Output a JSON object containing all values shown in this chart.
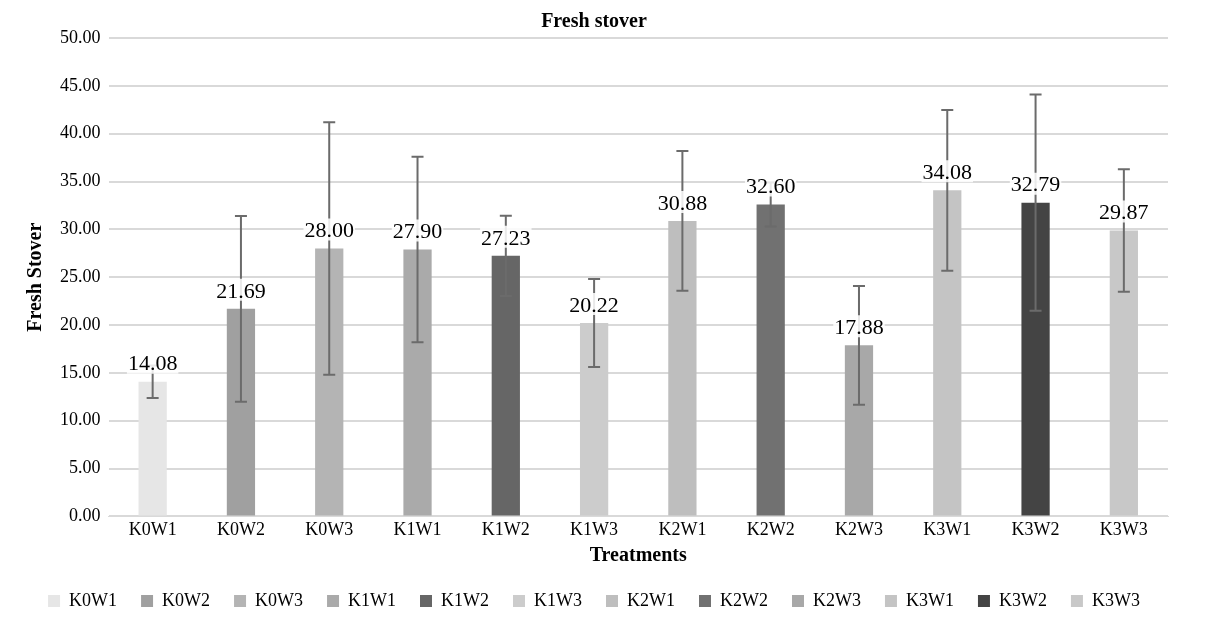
{
  "chart_data": {
    "type": "bar",
    "title": "Fresh stover",
    "xlabel": "Treatments",
    "ylabel": "Fresh Stover",
    "categories": [
      "K0W1",
      "K0W2",
      "K0W3",
      "K1W1",
      "K1W2",
      "K1W3",
      "K2W1",
      "K2W2",
      "K2W3",
      "K3W1",
      "K3W2",
      "K3W3"
    ],
    "series": [
      {
        "name": "K0W1",
        "color": "#e6e6e6",
        "values": [
          14.08,
          null,
          null,
          null,
          null,
          null,
          null,
          null,
          null,
          null,
          null,
          null
        ],
        "value_labels": [
          "14.08",
          null,
          null,
          null,
          null,
          null,
          null,
          null,
          null,
          null,
          null,
          null
        ],
        "errors": [
          1.7,
          null,
          null,
          null,
          null,
          null,
          null,
          null,
          null,
          null,
          null,
          null
        ]
      },
      {
        "name": "K0W2",
        "color": "#a0a0a0",
        "values": [
          null,
          21.69,
          null,
          null,
          null,
          null,
          null,
          null,
          null,
          null,
          null,
          null
        ],
        "value_labels": [
          null,
          "21.69",
          null,
          null,
          null,
          null,
          null,
          null,
          null,
          null,
          null,
          null
        ],
        "errors": [
          null,
          9.7,
          null,
          null,
          null,
          null,
          null,
          null,
          null,
          null,
          null,
          null
        ]
      },
      {
        "name": "K0W3",
        "color": "#b4b4b4",
        "values": [
          null,
          null,
          28.0,
          null,
          null,
          null,
          null,
          null,
          null,
          null,
          null,
          null
        ],
        "value_labels": [
          null,
          null,
          "28.00",
          null,
          null,
          null,
          null,
          null,
          null,
          null,
          null,
          null
        ],
        "errors": [
          null,
          null,
          13.2,
          null,
          null,
          null,
          null,
          null,
          null,
          null,
          null,
          null
        ]
      },
      {
        "name": "K1W1",
        "color": "#aaaaaa",
        "values": [
          null,
          null,
          null,
          27.9,
          null,
          null,
          null,
          null,
          null,
          null,
          null,
          null
        ],
        "value_labels": [
          null,
          null,
          null,
          "27.90",
          null,
          null,
          null,
          null,
          null,
          null,
          null,
          null
        ],
        "errors": [
          null,
          null,
          null,
          9.7,
          null,
          null,
          null,
          null,
          null,
          null,
          null,
          null
        ]
      },
      {
        "name": "K1W2",
        "color": "#666666",
        "values": [
          null,
          null,
          null,
          null,
          27.23,
          null,
          null,
          null,
          null,
          null,
          null,
          null
        ],
        "value_labels": [
          null,
          null,
          null,
          null,
          "27.23",
          null,
          null,
          null,
          null,
          null,
          null,
          null
        ],
        "errors": [
          null,
          null,
          null,
          null,
          4.2,
          null,
          null,
          null,
          null,
          null,
          null,
          null
        ]
      },
      {
        "name": "K1W3",
        "color": "#cccccc",
        "values": [
          null,
          null,
          null,
          null,
          null,
          20.22,
          null,
          null,
          null,
          null,
          null,
          null
        ],
        "value_labels": [
          null,
          null,
          null,
          null,
          null,
          "20.22",
          null,
          null,
          null,
          null,
          null,
          null
        ],
        "errors": [
          null,
          null,
          null,
          null,
          null,
          4.6,
          null,
          null,
          null,
          null,
          null,
          null
        ]
      },
      {
        "name": "K2W1",
        "color": "#bebebe",
        "values": [
          null,
          null,
          null,
          null,
          null,
          null,
          30.88,
          null,
          null,
          null,
          null,
          null
        ],
        "value_labels": [
          null,
          null,
          null,
          null,
          null,
          null,
          "30.88",
          null,
          null,
          null,
          null,
          null
        ],
        "errors": [
          null,
          null,
          null,
          null,
          null,
          null,
          7.3,
          null,
          null,
          null,
          null,
          null
        ]
      },
      {
        "name": "K2W2",
        "color": "#717171",
        "values": [
          null,
          null,
          null,
          null,
          null,
          null,
          null,
          32.6,
          null,
          null,
          null,
          null
        ],
        "value_labels": [
          null,
          null,
          null,
          null,
          null,
          null,
          null,
          "32.60",
          null,
          null,
          null,
          null
        ],
        "errors": [
          null,
          null,
          null,
          null,
          null,
          null,
          null,
          2.3,
          null,
          null,
          null,
          null
        ]
      },
      {
        "name": "K2W3",
        "color": "#a8a8a8",
        "values": [
          null,
          null,
          null,
          null,
          null,
          null,
          null,
          null,
          17.88,
          null,
          null,
          null
        ],
        "value_labels": [
          null,
          null,
          null,
          null,
          null,
          null,
          null,
          null,
          "17.88",
          null,
          null,
          null
        ],
        "errors": [
          null,
          null,
          null,
          null,
          null,
          null,
          null,
          null,
          6.2,
          null,
          null,
          null
        ]
      },
      {
        "name": "K3W1",
        "color": "#c4c4c4",
        "values": [
          null,
          null,
          null,
          null,
          null,
          null,
          null,
          null,
          null,
          34.08,
          null,
          null
        ],
        "value_labels": [
          null,
          null,
          null,
          null,
          null,
          null,
          null,
          null,
          null,
          "34.08",
          null,
          null
        ],
        "errors": [
          null,
          null,
          null,
          null,
          null,
          null,
          null,
          null,
          null,
          8.4,
          null,
          null
        ]
      },
      {
        "name": "K3W2",
        "color": "#444444",
        "values": [
          null,
          null,
          null,
          null,
          null,
          null,
          null,
          null,
          null,
          null,
          32.79,
          null
        ],
        "value_labels": [
          null,
          null,
          null,
          null,
          null,
          null,
          null,
          null,
          null,
          null,
          "32.79",
          null
        ],
        "errors": [
          null,
          null,
          null,
          null,
          null,
          null,
          null,
          null,
          null,
          null,
          11.3,
          null
        ]
      },
      {
        "name": "K3W3",
        "color": "#c8c8c8",
        "values": [
          null,
          null,
          null,
          null,
          null,
          null,
          null,
          null,
          null,
          null,
          null,
          29.87
        ],
        "value_labels": [
          null,
          null,
          null,
          null,
          null,
          null,
          null,
          null,
          null,
          null,
          null,
          "29.87"
        ],
        "errors": [
          null,
          null,
          null,
          null,
          null,
          null,
          null,
          null,
          null,
          null,
          null,
          6.4
        ]
      }
    ],
    "ylim": [
      0,
      50
    ],
    "yticks": [
      {
        "value": 0,
        "label": "0.00"
      },
      {
        "value": 5,
        "label": "5.00"
      },
      {
        "value": 10,
        "label": "10.00"
      },
      {
        "value": 15,
        "label": "15.00"
      },
      {
        "value": 20,
        "label": "20.00"
      },
      {
        "value": 25,
        "label": "25.00"
      },
      {
        "value": 30,
        "label": "30.00"
      },
      {
        "value": 35,
        "label": "35.00"
      },
      {
        "value": 40,
        "label": "40.00"
      },
      {
        "value": 45,
        "label": "45.00"
      },
      {
        "value": 50,
        "label": "50.00"
      }
    ],
    "grid": "y",
    "legend": "bottom"
  }
}
